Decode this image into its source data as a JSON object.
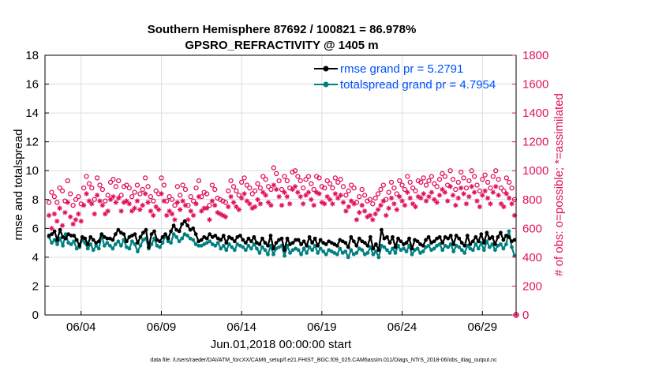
{
  "chart_data": {
    "type": "line",
    "title_line1": "Southern Hemisphere 87692 / 100821 = 86.978%",
    "title_line2": "GPSRO_REFRACTIVITY @ 1405 m",
    "xlabel": "Jun.01,2018 00:00:00 start",
    "ylabel_left": "rmse and totalspread",
    "ylabel_right": "# of obs: o=possible; *=assimilated",
    "ylim_left": [
      0,
      18
    ],
    "ylim_right": [
      0,
      1800
    ],
    "xlim": [
      1.75,
      31.1
    ],
    "yticks_left": [
      "0",
      "2",
      "4",
      "6",
      "8",
      "10",
      "12",
      "14",
      "16",
      "18"
    ],
    "yticks_right": [
      "0",
      "200",
      "400",
      "600",
      "800",
      "1000",
      "1200",
      "1400",
      "1600",
      "1800"
    ],
    "xtick_labels": [
      "06/04",
      "06/09",
      "06/14",
      "06/19",
      "06/24",
      "06/29"
    ],
    "xtick_days": [
      4,
      9,
      14,
      19,
      24,
      29
    ],
    "colors": {
      "rmse": "#000000",
      "spread": "#008080",
      "obs": "#e0115f",
      "grid": "#dddddd",
      "legend_text": "#0050ff"
    },
    "series": [
      {
        "name": "rmse grand pr = 5.2791",
        "axis": "left",
        "values": [
          5.5,
          5.6,
          5.8,
          5.2,
          5.9,
          5.4,
          5.3,
          5.6,
          5.5,
          5.5,
          5.2,
          4.8,
          5.4,
          5.3,
          4.9,
          5.4,
          5.2,
          5.0,
          5.1,
          5.6,
          5.4,
          5.3,
          5.3,
          5.2,
          5.6,
          5.9,
          5.7,
          5.6,
          5.1,
          5.4,
          5.5,
          5.6,
          5.0,
          5.4,
          5.7,
          5.9,
          4.7,
          5.6,
          5.8,
          5.2,
          5.1,
          5.4,
          5.6,
          5.3,
          5.8,
          6.2,
          5.9,
          5.8,
          6.3,
          6.5,
          6.2,
          5.9,
          6.0,
          5.6,
          5.1,
          5.2,
          5.4,
          5.3,
          5.6,
          5.4,
          5.5,
          5.3,
          5.2,
          5.5,
          5.0,
          5.4,
          5.3,
          5.1,
          5.4,
          5.5,
          5.2,
          5.0,
          5.3,
          5.1,
          5.4,
          5.0,
          4.9,
          5.3,
          5.0,
          4.8,
          5.5,
          4.6,
          5.0,
          5.2,
          5.3,
          4.5,
          5.3,
          4.9,
          5.0,
          5.2,
          5.2,
          4.9,
          5.1,
          4.8,
          5.4,
          5.0,
          5.3,
          4.8,
          5.2,
          5.0,
          4.9,
          5.1,
          5.0,
          4.9,
          4.8,
          5.2,
          5.1,
          5.0,
          4.7,
          5.4,
          5.1,
          4.8,
          5.3,
          5.1,
          5.0,
          4.8,
          5.4,
          4.6,
          4.9,
          4.5,
          5.9,
          5.3,
          5.4,
          5.0,
          5.4,
          4.7,
          5.3,
          5.1,
          4.9,
          5.0,
          5.3,
          4.6,
          5.2,
          5.1,
          4.9,
          4.8,
          5.2,
          5.4,
          5.0,
          5.1,
          5.3,
          5.4,
          5.0,
          5.4,
          5.3,
          5.5,
          4.9,
          5.5,
          5.3,
          5.0,
          4.8,
          5.5,
          4.9,
          5.1,
          5.4,
          5.1,
          5.6,
          5.0,
          5.7,
          5.3,
          5.4,
          4.9,
          5.4,
          5.7,
          5.2,
          5.5,
          5.4,
          5.1,
          5.2
        ]
      },
      {
        "name": "totalspread grand pr = 4.7954",
        "axis": "left",
        "values": [
          5.4,
          5.0,
          5.2,
          4.9,
          5.3,
          4.8,
          5.6,
          5.0,
          4.9,
          5.1,
          4.6,
          4.7,
          5.2,
          5.0,
          4.6,
          4.9,
          4.5,
          4.8,
          4.6,
          5.5,
          4.8,
          5.0,
          4.8,
          4.6,
          4.9,
          5.1,
          4.8,
          5.2,
          4.7,
          4.6,
          5.1,
          4.9,
          4.4,
          4.8,
          5.2,
          5.3,
          4.6,
          4.9,
          5.3,
          4.8,
          4.7,
          5.0,
          5.5,
          5.1,
          5.0,
          5.6,
          5.4,
          5.1,
          5.3,
          5.6,
          5.5,
          5.3,
          5.2,
          4.9,
          4.8,
          4.8,
          4.9,
          5.0,
          5.1,
          4.9,
          4.8,
          5.0,
          4.6,
          4.8,
          4.5,
          4.9,
          4.7,
          4.5,
          4.9,
          4.8,
          4.7,
          4.5,
          4.8,
          4.6,
          4.9,
          4.6,
          4.3,
          4.7,
          4.5,
          4.2,
          4.8,
          4.2,
          4.6,
          4.7,
          4.8,
          4.1,
          4.8,
          4.3,
          4.5,
          4.6,
          4.5,
          4.2,
          4.6,
          4.3,
          4.7,
          4.5,
          4.8,
          4.3,
          4.6,
          4.4,
          4.2,
          4.5,
          4.4,
          4.3,
          4.2,
          4.6,
          4.3,
          4.4,
          4.0,
          4.5,
          4.2,
          4.3,
          4.6,
          4.5,
          4.2,
          4.3,
          4.7,
          4.2,
          4.4,
          4.0,
          4.8,
          4.7,
          4.5,
          4.3,
          4.6,
          4.3,
          4.8,
          4.5,
          4.6,
          4.4,
          4.8,
          4.2,
          4.5,
          4.6,
          4.3,
          4.4,
          4.7,
          4.8,
          4.5,
          4.6,
          4.8,
          4.9,
          4.5,
          4.8,
          4.7,
          4.9,
          4.4,
          4.8,
          4.7,
          4.5,
          4.3,
          4.8,
          4.6,
          4.5,
          4.9,
          4.6,
          5.0,
          4.5,
          5.1,
          4.7,
          4.9,
          4.5,
          4.8,
          4.9,
          4.6,
          4.9,
          5.8,
          4.7,
          4.1
        ]
      },
      {
        "name": "possible",
        "axis": "right",
        "marker": "o",
        "values": [
          780,
          850,
          820,
          780,
          880,
          860,
          790,
          930,
          840,
          760,
          800,
          820,
          770,
          880,
          960,
          910,
          880,
          800,
          950,
          900,
          870,
          790,
          830,
          920,
          940,
          890,
          930,
          830,
          890,
          900,
          880,
          820,
          850,
          900,
          840,
          870,
          950,
          890,
          820,
          790,
          860,
          840,
          950,
          900,
          790,
          820,
          800,
          760,
          890,
          830,
          900,
          870,
          760,
          820,
          790,
          880,
          930,
          820,
          850,
          840,
          760,
          900,
          870,
          810,
          800,
          790,
          780,
          860,
          930,
          890,
          860,
          830,
          920,
          950,
          900,
          880,
          840,
          860,
          910,
          880,
          960,
          940,
          890,
          870,
          1020,
          980,
          930,
          870,
          960,
          930,
          880,
          990,
          1000,
          960,
          930,
          880,
          940,
          960,
          910,
          870,
          960,
          950,
          890,
          880,
          930,
          910,
          880,
          950,
          920,
          940,
          890,
          830,
          860,
          900,
          880,
          780,
          820,
          870,
          830,
          790,
          800,
          770,
          810,
          840,
          870,
          900,
          800,
          850,
          920,
          880,
          840,
          930,
          900,
          870,
          960,
          920,
          880,
          860,
          930,
          920,
          950,
          900,
          930,
          960,
          910,
          890,
          940,
          980,
          960,
          900,
          1000,
          940,
          870,
          920,
          990,
          950,
          880,
          930,
          1000,
          960,
          900,
          860,
          940,
          970,
          920,
          880,
          960,
          1000,
          940,
          880,
          860,
          950,
          920,
          880,
          800
        ]
      },
      {
        "name": "assimilated",
        "axis": "right",
        "marker": "*",
        "values": [
          690,
          600,
          700,
          650,
          740,
          620,
          710,
          780,
          680,
          630,
          660,
          700,
          650,
          760,
          840,
          790,
          770,
          700,
          830,
          790,
          760,
          700,
          720,
          800,
          820,
          780,
          810,
          720,
          780,
          790,
          770,
          720,
          740,
          790,
          730,
          760,
          840,
          780,
          720,
          690,
          750,
          730,
          840,
          790,
          690,
          720,
          700,
          660,
          780,
          730,
          790,
          760,
          660,
          720,
          690,
          770,
          820,
          720,
          740,
          740,
          660,
          790,
          760,
          710,
          700,
          690,
          680,
          750,
          820,
          780,
          750,
          730,
          810,
          840,
          790,
          770,
          740,
          750,
          800,
          770,
          850,
          830,
          780,
          760,
          900,
          870,
          820,
          760,
          850,
          820,
          770,
          870,
          890,
          850,
          820,
          770,
          830,
          850,
          800,
          760,
          850,
          840,
          780,
          770,
          820,
          800,
          770,
          840,
          810,
          830,
          780,
          720,
          750,
          790,
          770,
          660,
          710,
          760,
          720,
          680,
          690,
          660,
          700,
          730,
          760,
          790,
          690,
          740,
          810,
          770,
          730,
          820,
          790,
          760,
          850,
          810,
          770,
          750,
          820,
          810,
          840,
          790,
          820,
          850,
          800,
          780,
          830,
          870,
          850,
          790,
          890,
          830,
          760,
          810,
          880,
          840,
          770,
          820,
          890,
          850,
          790,
          750,
          830,
          860,
          810,
          770,
          850,
          890,
          830,
          770,
          750,
          840,
          810,
          770,
          690
        ]
      }
    ],
    "footnote": "data file: /Users/raeder/DAI/ATM_forcXX/CAM6_setup/f.e21.FHIST_BGC.f09_025.CAM6assim.011/Diags_NTrS_2018-06/obs_diag_output.nc"
  }
}
